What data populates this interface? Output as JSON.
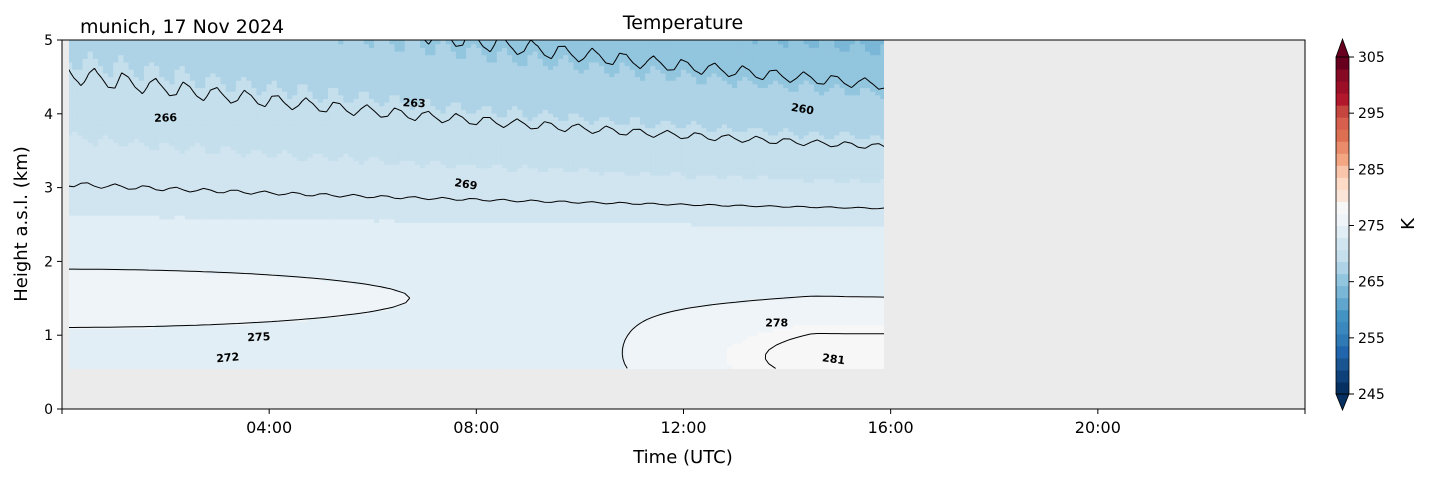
{
  "chart_data": {
    "type": "heatmap",
    "title": "Temperature",
    "subtitle": "munich, 17 Nov 2024",
    "xlabel": "Time (UTC)",
    "ylabel": "Height a.s.l. (km)",
    "xlim": [
      0,
      24
    ],
    "ylim": [
      0,
      5
    ],
    "x_ticks": [
      {
        "value": 4,
        "label": "04:00"
      },
      {
        "value": 8,
        "label": "08:00"
      },
      {
        "value": 12,
        "label": "12:00"
      },
      {
        "value": 16,
        "label": "16:00"
      },
      {
        "value": 20,
        "label": "20:00"
      }
    ],
    "y_ticks": [
      {
        "value": 0,
        "label": "0"
      },
      {
        "value": 1,
        "label": "1"
      },
      {
        "value": 2,
        "label": "2"
      },
      {
        "value": 3,
        "label": "3"
      },
      {
        "value": 4,
        "label": "4"
      },
      {
        "value": 5,
        "label": "5"
      }
    ],
    "data_extent": {
      "time_start": 0.1,
      "time_end": 15.9,
      "height_min": 0.55,
      "height_max": 5.0
    },
    "no_data_color": "#ebebeb",
    "colormap": "RdBu_r",
    "colorbar": {
      "label": "K",
      "vmin": 245,
      "vmax": 305,
      "ticks": [
        {
          "value": 245,
          "label": "245"
        },
        {
          "value": 255,
          "label": "255"
        },
        {
          "value": 265,
          "label": "265"
        },
        {
          "value": 275,
          "label": "275"
        },
        {
          "value": 285,
          "label": "285"
        },
        {
          "value": 295,
          "label": "295"
        },
        {
          "value": 305,
          "label": "305"
        }
      ],
      "colors": [
        "#053061",
        "#0e4179",
        "#1a5592",
        "#2166ac",
        "#2f79b5",
        "#3b88bf",
        "#4393c3",
        "#5fa5cd",
        "#7ab6d6",
        "#92c5de",
        "#aed3e6",
        "#c5dfec",
        "#d1e5f0",
        "#e2eef5",
        "#eff4f8",
        "#f7f7f7",
        "#fbe5d8",
        "#fddbc7",
        "#f9c5ab",
        "#f4a582",
        "#ea8c6b",
        "#dd7052",
        "#d6604d",
        "#c5453f",
        "#b2182b",
        "#9b1026",
        "#860a24",
        "#67001f"
      ]
    },
    "contour_levels": [
      257,
      260,
      263,
      266,
      269,
      272,
      275,
      278,
      281
    ],
    "contour_labels": [
      {
        "text": "266",
        "x": 2.0,
        "y": 3.95,
        "angle": -2
      },
      {
        "text": "263",
        "x": 6.8,
        "y": 4.15,
        "angle": 3
      },
      {
        "text": "260",
        "x": 14.3,
        "y": 4.07,
        "angle": 10
      },
      {
        "text": "269",
        "x": 7.8,
        "y": 3.05,
        "angle": 9
      },
      {
        "text": "275",
        "x": 3.8,
        "y": 0.98,
        "angle": -3
      },
      {
        "text": "272",
        "x": 3.2,
        "y": 0.7,
        "angle": -5
      },
      {
        "text": "278",
        "x": 13.8,
        "y": 1.17,
        "angle": 0
      },
      {
        "text": "281",
        "x": 14.9,
        "y": 0.68,
        "angle": 8
      }
    ]
  }
}
